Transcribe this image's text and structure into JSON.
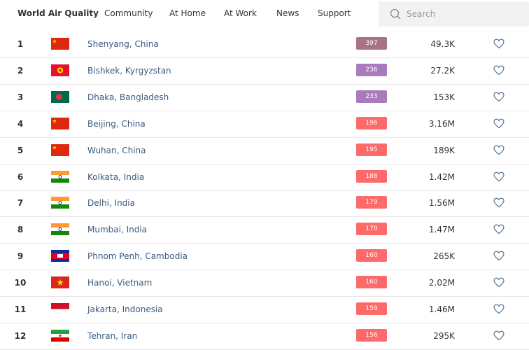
{
  "nav": {
    "items": [
      "World Air Quality",
      "Community",
      "At Home",
      "At Work",
      "News",
      "Support"
    ],
    "search_placeholder": "Search"
  },
  "ranking": {
    "rows": [
      {
        "rank": 1,
        "city": "Shenyang, China",
        "aqi": 397,
        "aqi_color": "#a87383",
        "followers": "49.3K"
      },
      {
        "rank": 2,
        "city": "Bishkek, Kyrgyzstan",
        "aqi": 236,
        "aqi_color": "#a97abc",
        "followers": "27.2K"
      },
      {
        "rank": 3,
        "city": "Dhaka, Bangladesh",
        "aqi": 233,
        "aqi_color": "#a97abc",
        "followers": "153K"
      },
      {
        "rank": 4,
        "city": "Beijing, China",
        "aqi": 196,
        "aqi_color": "#fe6a69",
        "followers": "3.16M"
      },
      {
        "rank": 5,
        "city": "Wuhan, China",
        "aqi": 195,
        "aqi_color": "#fe6a69",
        "followers": "189K"
      },
      {
        "rank": 6,
        "city": "Kolkata, India",
        "aqi": 188,
        "aqi_color": "#fe6a69",
        "followers": "1.42M"
      },
      {
        "rank": 7,
        "city": "Delhi, India",
        "aqi": 179,
        "aqi_color": "#fe6a69",
        "followers": "1.56M"
      },
      {
        "rank": 8,
        "city": "Mumbai, India",
        "aqi": 170,
        "aqi_color": "#fe6a69",
        "followers": "1.47M"
      },
      {
        "rank": 9,
        "city": "Phnom Penh, Cambodia",
        "aqi": 160,
        "aqi_color": "#fe6a69",
        "followers": "265K"
      },
      {
        "rank": 10,
        "city": "Hanoi, Vietnam",
        "aqi": 160,
        "aqi_color": "#fe6a69",
        "followers": "2.02M"
      },
      {
        "rank": 11,
        "city": "Jakarta, Indonesia",
        "aqi": 159,
        "aqi_color": "#fe6a69",
        "followers": "1.46M"
      },
      {
        "rank": 12,
        "city": "Tehran, Iran",
        "aqi": 156,
        "aqi_color": "#fe6a69",
        "followers": "295K"
      }
    ]
  }
}
